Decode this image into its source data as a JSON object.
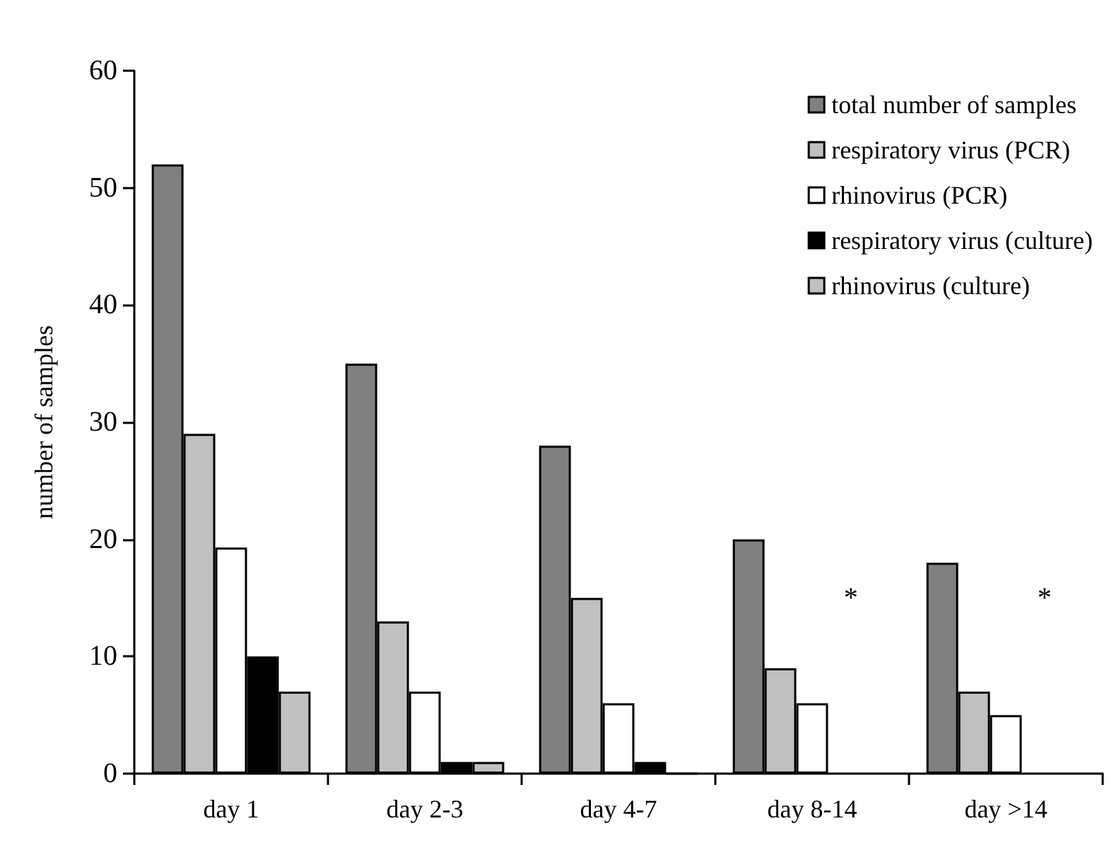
{
  "chart_data": {
    "type": "bar",
    "ylabel": "number of samples",
    "categories": [
      "day 1",
      "day 2-3",
      "day 4-7",
      "day 8-14",
      "day >14"
    ],
    "series": [
      {
        "name": "total number of samples",
        "color": "#808080",
        "values": [
          52,
          35,
          28,
          20,
          18
        ]
      },
      {
        "name": "respiratory virus (PCR)",
        "color": "#c0c0c0",
        "values": [
          29,
          13,
          15,
          9,
          7
        ]
      },
      {
        "name": "rhinovirus (PCR)",
        "color": "#ffffff",
        "values": [
          19.3,
          7,
          6,
          6,
          5
        ]
      },
      {
        "name": "respiratory virus (culture)",
        "color": "#000000",
        "values": [
          10,
          1,
          1,
          null,
          null
        ]
      },
      {
        "name": "rhinovirus (culture)",
        "color": "#c0c0c0",
        "values": [
          7,
          1,
          0,
          null,
          null
        ]
      }
    ],
    "annotations": [
      "*",
      "*"
    ],
    "ylim": [
      0,
      60
    ],
    "yticks": [
      0,
      10,
      20,
      30,
      40,
      50,
      60
    ],
    "grid": false,
    "legend": "top right"
  }
}
